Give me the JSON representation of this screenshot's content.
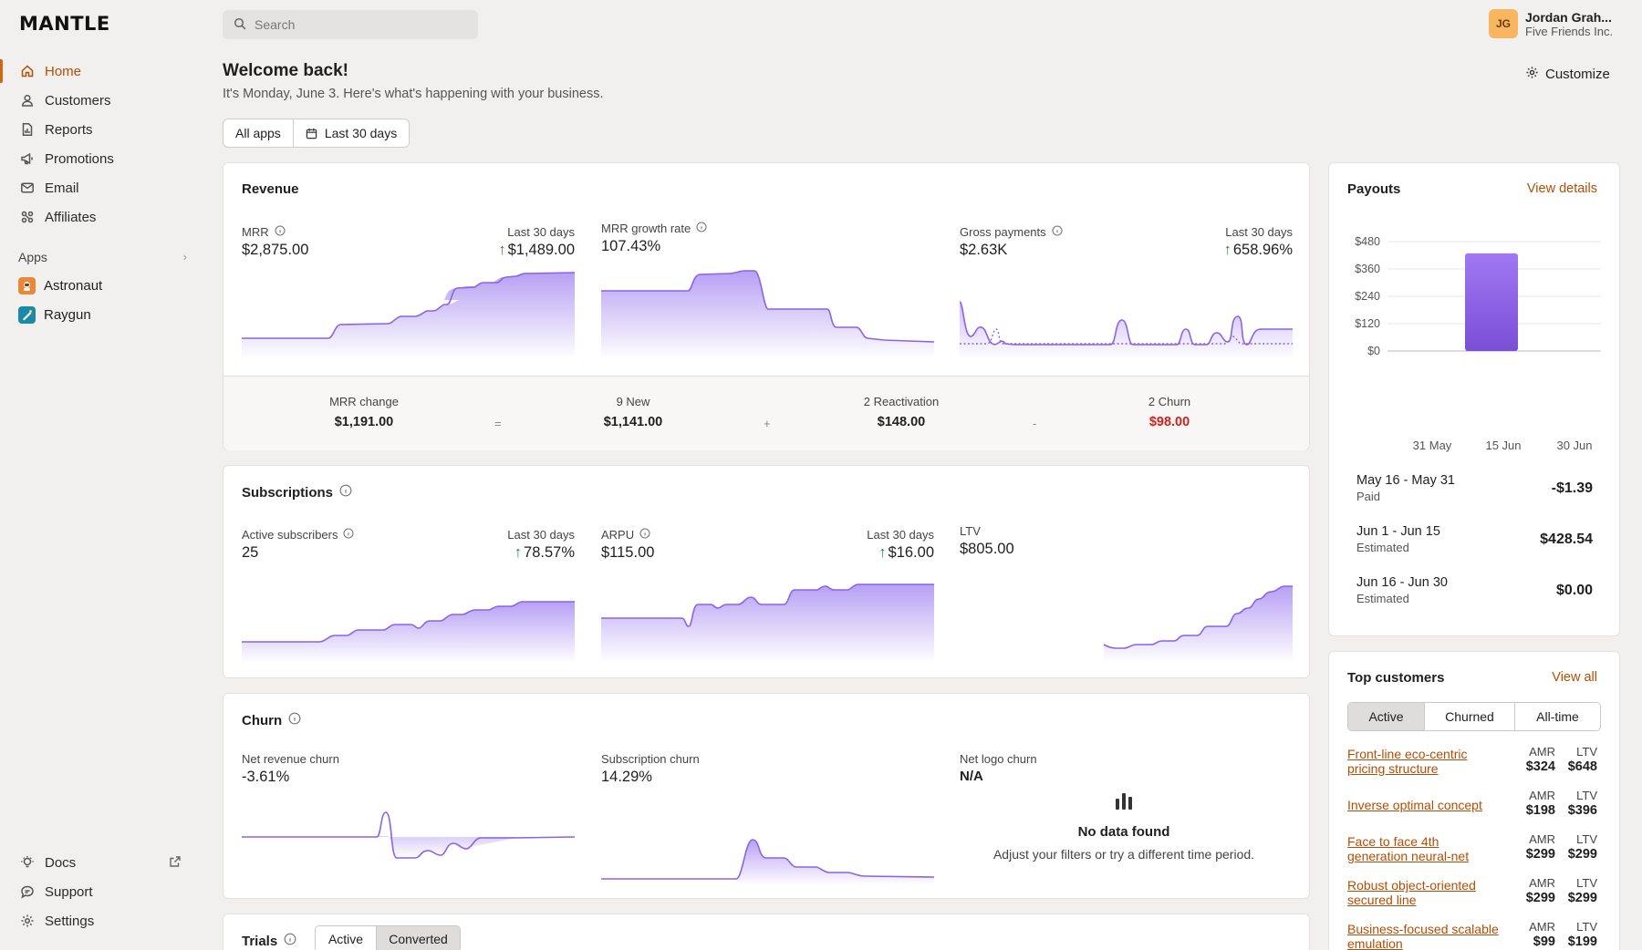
{
  "brand": {
    "logo": "MANTLE"
  },
  "nav": {
    "items": [
      {
        "label": "Home",
        "icon": "home-icon"
      },
      {
        "label": "Customers",
        "icon": "user-icon"
      },
      {
        "label": "Reports",
        "icon": "report-icon"
      },
      {
        "label": "Promotions",
        "icon": "megaphone-icon"
      },
      {
        "label": "Email",
        "icon": "mail-icon"
      },
      {
        "label": "Affiliates",
        "icon": "affiliates-icon"
      }
    ],
    "apps_heading": "Apps",
    "apps": [
      {
        "label": "Astronaut",
        "color": "#e8893a"
      },
      {
        "label": "Raygun",
        "color": "#1c8aa6"
      }
    ],
    "bottom": [
      {
        "label": "Docs"
      },
      {
        "label": "Support"
      },
      {
        "label": "Settings"
      }
    ]
  },
  "search": {
    "placeholder": "Search"
  },
  "user": {
    "initials": "JG",
    "name": "Jordan Grah...",
    "org": "Five Friends Inc."
  },
  "header": {
    "title": "Welcome back!",
    "subtitle": "It's Monday, June 3. Here's what's happening with your business.",
    "customize_label": "Customize",
    "filter_apps": "All apps",
    "filter_range": "Last 30 days"
  },
  "colors": {
    "accent": "#b44d05",
    "chart_line": "#8a63e8",
    "chart_fill": "#c9b5f7",
    "churn_red": "#d0211c",
    "up_green": "#1b8a3a"
  },
  "revenue": {
    "title": "Revenue",
    "mrr": {
      "label": "MRR",
      "value": "$2,875.00",
      "period": "Last 30 days",
      "delta": "$1,489.00"
    },
    "growth": {
      "label": "MRR growth rate",
      "value": "107.43%"
    },
    "gross": {
      "label": "Gross payments",
      "value": "$2.63K",
      "period": "Last 30 days",
      "delta": "658.96%"
    },
    "breakdown": {
      "change": {
        "label": "MRR change",
        "value": "$1,191.00"
      },
      "new": {
        "label": "9 New",
        "value": "$1,141.00"
      },
      "reactivation": {
        "label": "2 Reactivation",
        "value": "$148.00"
      },
      "churn": {
        "label": "2 Churn",
        "value": "$98.00"
      },
      "op_eq": "=",
      "op_plus": "+",
      "op_minus": "-"
    }
  },
  "subscriptions": {
    "title": "Subscriptions",
    "active": {
      "label": "Active subscribers",
      "value": "25",
      "period": "Last 30 days",
      "delta": "78.57%"
    },
    "arpu": {
      "label": "ARPU",
      "value": "$115.00",
      "period": "Last 30 days",
      "delta": "$16.00"
    },
    "ltv": {
      "label": "LTV",
      "value": "$805.00"
    }
  },
  "churn": {
    "title": "Churn",
    "net_revenue": {
      "label": "Net revenue churn",
      "value": "-3.61%"
    },
    "subscription": {
      "label": "Subscription churn",
      "value": "14.29%"
    },
    "net_logo": {
      "label": "Net logo churn",
      "value": "N/A"
    },
    "nodata_title": "No data found",
    "nodata_text": "Adjust your filters or try a different time period."
  },
  "trials": {
    "title": "Trials",
    "tabs": [
      "Active",
      "Converted"
    ],
    "selected": "Converted"
  },
  "payouts": {
    "title": "Payouts",
    "view_label": "View details",
    "chart_data": {
      "type": "bar",
      "yticks": [
        "$480",
        "$360",
        "$240",
        "$120",
        "$0"
      ],
      "ylim": [
        0,
        480
      ],
      "xticks": [
        "31 May",
        "15 Jun",
        "30 Jun"
      ],
      "values": [
        428.54
      ],
      "color_top": "#a078f2",
      "color_bottom": "#7b4fd6"
    },
    "rows": [
      {
        "range": "May 16 - May 31",
        "status": "Paid",
        "amount": "-$1.39"
      },
      {
        "range": "Jun 1 - Jun 15",
        "status": "Estimated",
        "amount": "$428.54"
      },
      {
        "range": "Jun 16 - Jun 30",
        "status": "Estimated",
        "amount": "$0.00"
      }
    ]
  },
  "top_customers": {
    "title": "Top customers",
    "view_label": "View all",
    "tabs": [
      "Active",
      "Churned",
      "All-time"
    ],
    "selected": "Active",
    "col_amr": "AMR",
    "col_ltv": "LTV",
    "rows": [
      {
        "name": "Front-line eco-centric pricing structure",
        "amr": "$324",
        "ltv": "$648"
      },
      {
        "name": "Inverse optimal concept",
        "amr": "$198",
        "ltv": "$396"
      },
      {
        "name": "Face to face 4th generation neural-net",
        "amr": "$299",
        "ltv": "$299"
      },
      {
        "name": "Robust object-oriented secured line",
        "amr": "$299",
        "ltv": "$299"
      },
      {
        "name": "Business-focused scalable emulation",
        "amr": "$99",
        "ltv": "$199"
      }
    ]
  }
}
